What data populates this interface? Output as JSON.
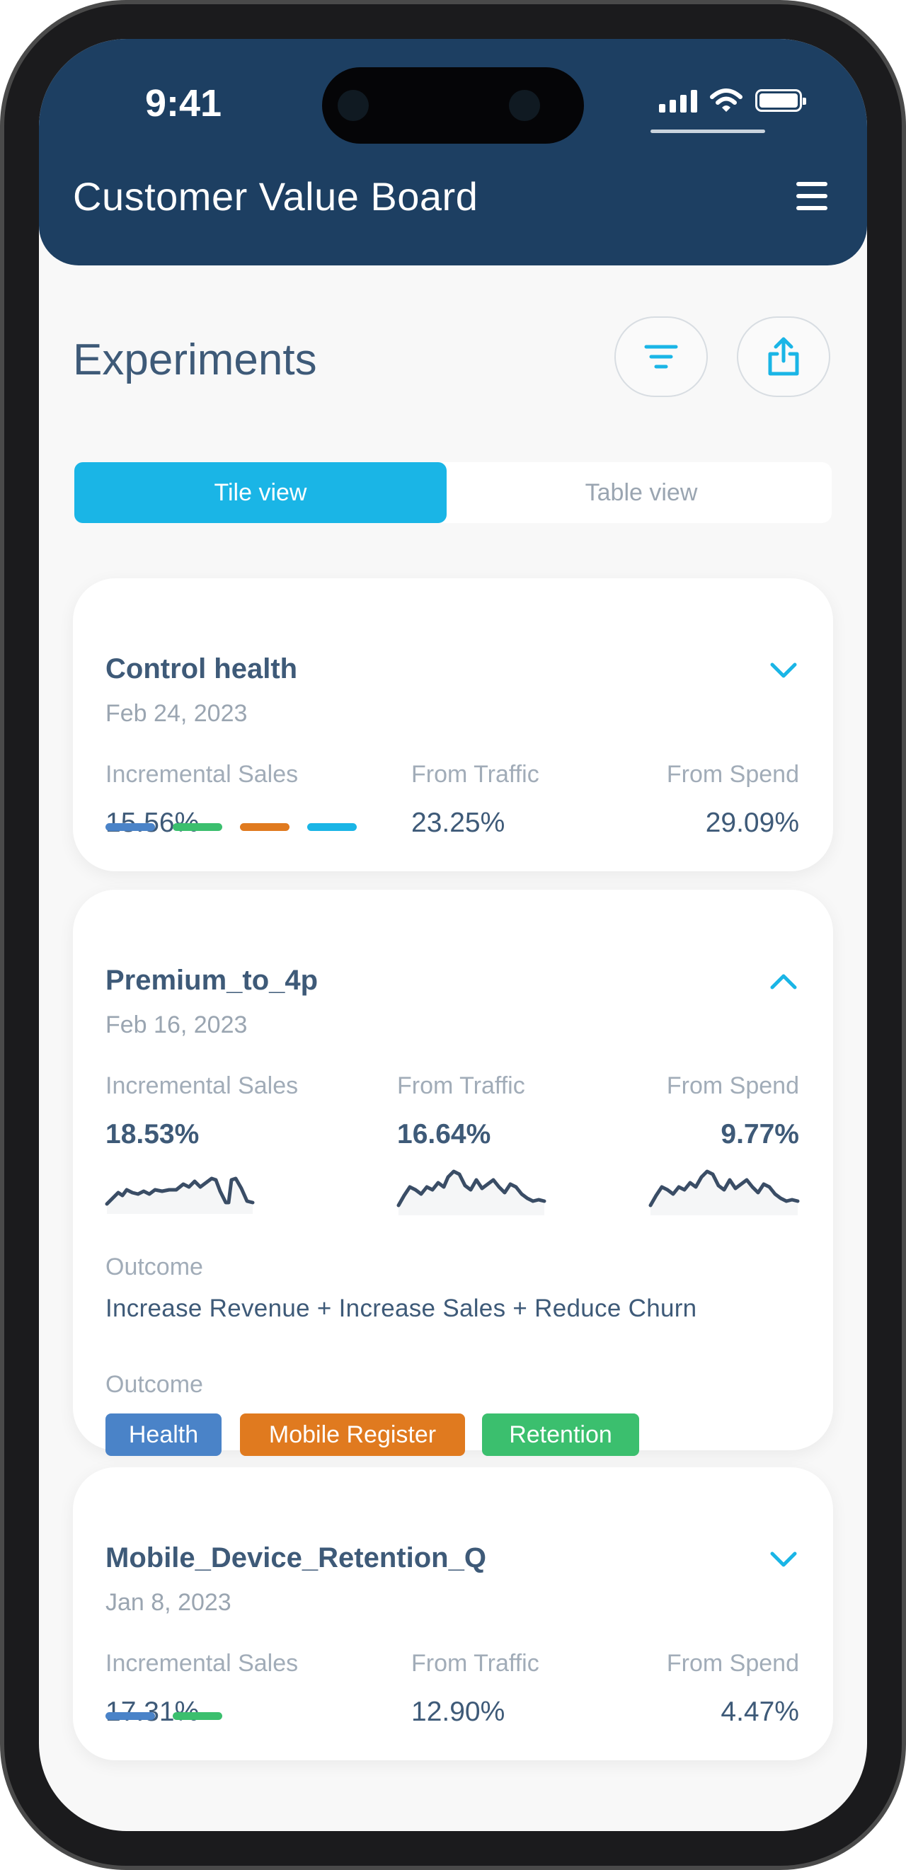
{
  "status": {
    "time": "9:41"
  },
  "header": {
    "title": "Customer Value Board"
  },
  "page": {
    "title": "Experiments"
  },
  "view_toggle": {
    "tile": "Tile view",
    "table": "Table view",
    "selected": "Tile view"
  },
  "colors": {
    "header_bg": "#1d3f62",
    "accent": "#1ab5e6",
    "text_primary": "#3e5a78",
    "text_muted": "#a1acb8",
    "bar_blue": "#4a83c8",
    "bar_green": "#3bbf6e",
    "bar_orange": "#e07a1f",
    "bar_cyan": "#1ab5e6"
  },
  "cards": [
    {
      "title": "Control health",
      "date": "Feb 24, 2023",
      "expanded": false,
      "metrics": [
        {
          "label": "Incremental Sales",
          "value": "15.56%"
        },
        {
          "label": "From Traffic",
          "value": "23.25%"
        },
        {
          "label": "From Spend",
          "value": "29.09%"
        }
      ],
      "bars": [
        "blue",
        "green",
        "orange",
        "cyan"
      ]
    },
    {
      "title": "Premium_to_4p",
      "date": "Feb 16, 2023",
      "expanded": true,
      "metrics": [
        {
          "label": "Incremental Sales",
          "value": "18.53%"
        },
        {
          "label": "From Traffic",
          "value": "16.64%"
        },
        {
          "label": "From Spend",
          "value": "9.77%"
        }
      ],
      "outcome_label": "Outcome",
      "outcome_text": "Increase Revenue + Increase Sales + Reduce Churn",
      "tags_label": "Outcome",
      "tags": [
        {
          "label": "Health",
          "color": "#4a83c8"
        },
        {
          "label": "Mobile Register",
          "color": "#e07a1f"
        },
        {
          "label": "Retention",
          "color": "#3bbf6e"
        }
      ]
    },
    {
      "title": "Mobile_Device_Retention_Q",
      "date": "Jan 8, 2023",
      "expanded": false,
      "metrics": [
        {
          "label": "Incremental Sales",
          "value": "17.31%"
        },
        {
          "label": "From Traffic",
          "value": "12.90%"
        },
        {
          "label": "From Spend",
          "value": "4.47%"
        }
      ],
      "bars": [
        "blue",
        "green"
      ]
    }
  ]
}
